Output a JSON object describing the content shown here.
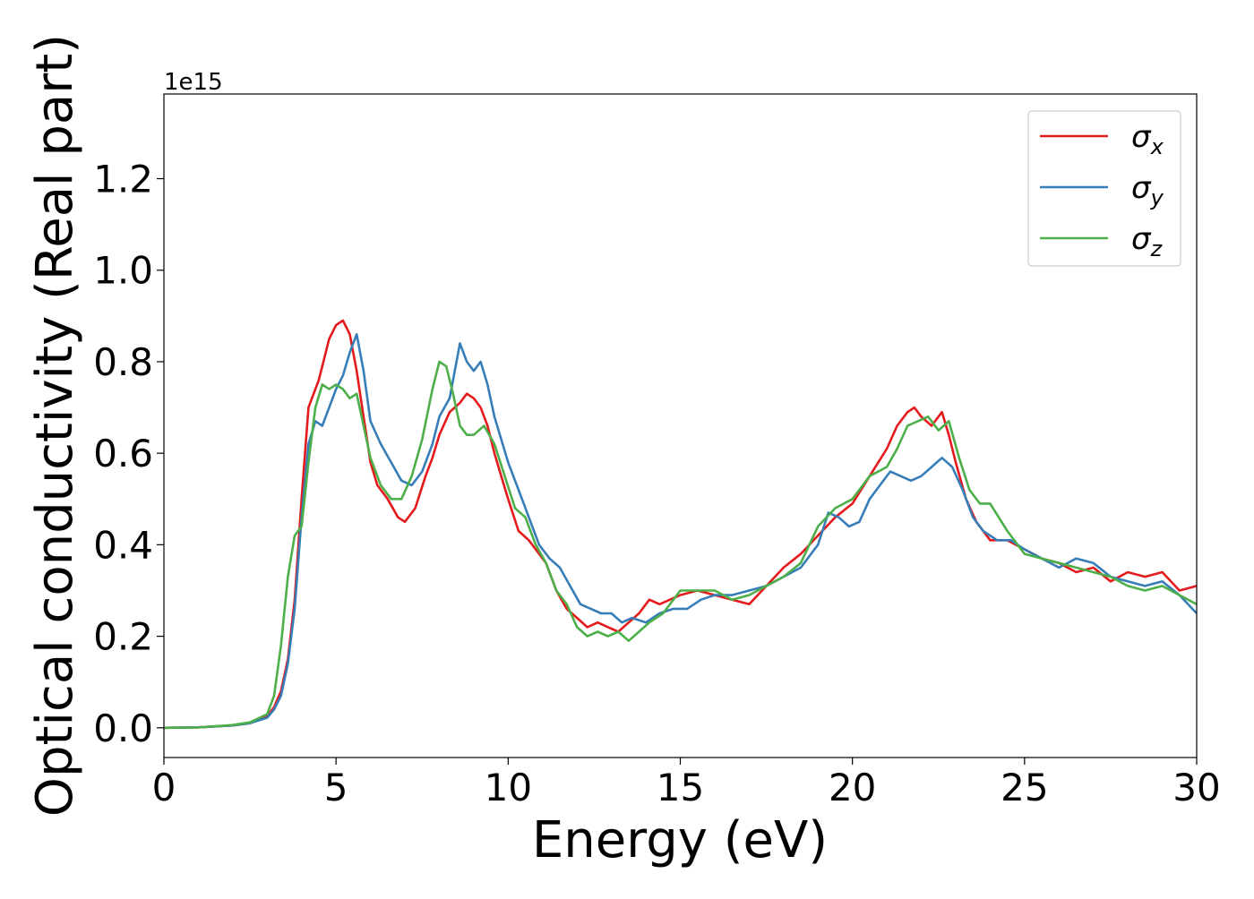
{
  "chart_data": {
    "type": "line",
    "title": "",
    "xlabel": "Energy (eV)",
    "ylabel": "Optical conductivity (Real part)",
    "y_offset_text": "1e15",
    "xlim": [
      0,
      30
    ],
    "ylim": [
      -0.065,
      1.385
    ],
    "x_ticks": [
      0,
      5,
      10,
      15,
      20,
      25,
      30
    ],
    "x_tick_labels": [
      "0",
      "5",
      "10",
      "15",
      "20",
      "25",
      "30"
    ],
    "y_ticks": [
      0.0,
      0.2,
      0.4,
      0.6,
      0.8,
      1.0,
      1.2
    ],
    "y_tick_labels": [
      "0.0",
      "0.2",
      "0.4",
      "0.6",
      "0.8",
      "1.0",
      "1.2"
    ],
    "grid": false,
    "legend_position": "top-right",
    "series": [
      {
        "name": "σx",
        "legend_base": "σ",
        "legend_sub": "x",
        "color": "#e41a1c",
        "x": [
          0,
          1,
          2,
          2.5,
          3,
          3.2,
          3.4,
          3.6,
          3.8,
          4.0,
          4.2,
          4.5,
          4.8,
          5.0,
          5.2,
          5.4,
          5.6,
          5.8,
          6.0,
          6.2,
          6.5,
          6.8,
          7.0,
          7.3,
          7.6,
          7.8,
          8.0,
          8.3,
          8.6,
          8.8,
          9.0,
          9.2,
          9.4,
          9.6,
          9.8,
          10.0,
          10.3,
          10.6,
          10.9,
          11.1,
          11.4,
          11.7,
          12.0,
          12.3,
          12.6,
          12.9,
          13.2,
          13.5,
          13.8,
          14.1,
          14.4,
          14.7,
          15.0,
          15.5,
          16.0,
          16.5,
          17.0,
          17.5,
          18.0,
          18.5,
          19.0,
          19.5,
          20.0,
          20.5,
          21.0,
          21.3,
          21.6,
          21.8,
          22.0,
          22.3,
          22.6,
          22.8,
          23.0,
          23.3,
          23.6,
          24.0,
          24.5,
          25.0,
          25.5,
          26.0,
          26.5,
          27.0,
          27.5,
          28.0,
          28.5,
          29.0,
          29.5,
          30.0
        ],
        "y": [
          0.0,
          0.001,
          0.005,
          0.01,
          0.025,
          0.045,
          0.08,
          0.15,
          0.28,
          0.5,
          0.7,
          0.76,
          0.85,
          0.88,
          0.89,
          0.86,
          0.78,
          0.68,
          0.58,
          0.53,
          0.5,
          0.46,
          0.45,
          0.48,
          0.55,
          0.59,
          0.64,
          0.69,
          0.71,
          0.73,
          0.72,
          0.7,
          0.66,
          0.6,
          0.55,
          0.5,
          0.43,
          0.41,
          0.38,
          0.36,
          0.3,
          0.26,
          0.24,
          0.22,
          0.23,
          0.22,
          0.21,
          0.23,
          0.25,
          0.28,
          0.27,
          0.28,
          0.29,
          0.3,
          0.29,
          0.28,
          0.27,
          0.31,
          0.35,
          0.38,
          0.42,
          0.46,
          0.49,
          0.55,
          0.61,
          0.66,
          0.69,
          0.7,
          0.68,
          0.66,
          0.69,
          0.64,
          0.58,
          0.5,
          0.45,
          0.41,
          0.41,
          0.39,
          0.37,
          0.36,
          0.34,
          0.35,
          0.32,
          0.34,
          0.33,
          0.34,
          0.3,
          0.31
        ]
      },
      {
        "name": "σy",
        "legend_base": "σ",
        "legend_sub": "y",
        "color": "#377eb8",
        "x": [
          0,
          1,
          2,
          2.5,
          3,
          3.2,
          3.4,
          3.6,
          3.8,
          4.0,
          4.2,
          4.4,
          4.6,
          4.8,
          5.0,
          5.2,
          5.4,
          5.6,
          5.8,
          6.0,
          6.3,
          6.6,
          6.9,
          7.2,
          7.5,
          7.8,
          8.0,
          8.3,
          8.6,
          8.8,
          9.0,
          9.2,
          9.4,
          9.6,
          9.8,
          10.0,
          10.3,
          10.6,
          10.9,
          11.2,
          11.5,
          11.8,
          12.1,
          12.4,
          12.7,
          13.0,
          13.3,
          13.6,
          14.0,
          14.4,
          14.8,
          15.2,
          15.6,
          16.0,
          16.5,
          17.0,
          17.5,
          18.0,
          18.5,
          19.0,
          19.3,
          19.6,
          19.9,
          20.2,
          20.5,
          20.8,
          21.1,
          21.4,
          21.7,
          22.0,
          22.3,
          22.6,
          22.9,
          23.2,
          23.5,
          23.8,
          24.2,
          24.6,
          25.0,
          25.5,
          26.0,
          26.5,
          27.0,
          27.5,
          28.0,
          28.5,
          29.0,
          29.5,
          30.0
        ],
        "y": [
          0.0,
          0.001,
          0.005,
          0.01,
          0.022,
          0.04,
          0.07,
          0.14,
          0.26,
          0.46,
          0.62,
          0.67,
          0.66,
          0.7,
          0.74,
          0.77,
          0.82,
          0.86,
          0.78,
          0.67,
          0.62,
          0.58,
          0.54,
          0.53,
          0.56,
          0.62,
          0.68,
          0.72,
          0.84,
          0.8,
          0.78,
          0.8,
          0.75,
          0.68,
          0.63,
          0.58,
          0.52,
          0.46,
          0.4,
          0.37,
          0.35,
          0.31,
          0.27,
          0.26,
          0.25,
          0.25,
          0.23,
          0.24,
          0.23,
          0.25,
          0.26,
          0.26,
          0.28,
          0.29,
          0.29,
          0.3,
          0.31,
          0.33,
          0.35,
          0.4,
          0.47,
          0.46,
          0.44,
          0.45,
          0.5,
          0.53,
          0.56,
          0.55,
          0.54,
          0.55,
          0.57,
          0.59,
          0.57,
          0.52,
          0.46,
          0.43,
          0.41,
          0.41,
          0.39,
          0.37,
          0.35,
          0.37,
          0.36,
          0.33,
          0.32,
          0.31,
          0.32,
          0.29,
          0.25
        ]
      },
      {
        "name": "σz",
        "legend_base": "σ",
        "legend_sub": "z",
        "color": "#4daf4a",
        "x": [
          0,
          1,
          2,
          2.5,
          3,
          3.2,
          3.4,
          3.6,
          3.8,
          4.0,
          4.2,
          4.4,
          4.6,
          4.8,
          5.0,
          5.2,
          5.4,
          5.6,
          5.8,
          6.0,
          6.3,
          6.6,
          6.9,
          7.2,
          7.5,
          7.8,
          8.0,
          8.2,
          8.4,
          8.6,
          8.8,
          9.0,
          9.3,
          9.6,
          9.9,
          10.2,
          10.5,
          10.8,
          11.1,
          11.4,
          11.7,
          12.0,
          12.3,
          12.6,
          12.9,
          13.2,
          13.5,
          13.8,
          14.1,
          14.5,
          15.0,
          15.5,
          16.0,
          16.5,
          17.0,
          17.5,
          18.0,
          18.5,
          19.0,
          19.5,
          20.0,
          20.5,
          21.0,
          21.3,
          21.6,
          21.9,
          22.2,
          22.5,
          22.8,
          23.1,
          23.4,
          23.7,
          24.0,
          24.5,
          25.0,
          25.5,
          26.0,
          26.5,
          27.0,
          27.5,
          28.0,
          28.5,
          29.0,
          29.5,
          30.0
        ],
        "y": [
          0.0,
          0.001,
          0.006,
          0.012,
          0.03,
          0.07,
          0.18,
          0.33,
          0.42,
          0.44,
          0.58,
          0.7,
          0.75,
          0.74,
          0.75,
          0.74,
          0.72,
          0.73,
          0.66,
          0.59,
          0.53,
          0.5,
          0.5,
          0.55,
          0.63,
          0.74,
          0.8,
          0.79,
          0.73,
          0.66,
          0.64,
          0.64,
          0.66,
          0.62,
          0.55,
          0.48,
          0.46,
          0.4,
          0.36,
          0.3,
          0.27,
          0.22,
          0.2,
          0.21,
          0.2,
          0.21,
          0.19,
          0.21,
          0.23,
          0.25,
          0.3,
          0.3,
          0.3,
          0.28,
          0.29,
          0.31,
          0.33,
          0.36,
          0.44,
          0.48,
          0.5,
          0.55,
          0.57,
          0.61,
          0.66,
          0.67,
          0.68,
          0.65,
          0.67,
          0.59,
          0.52,
          0.49,
          0.49,
          0.43,
          0.38,
          0.37,
          0.36,
          0.35,
          0.34,
          0.33,
          0.31,
          0.3,
          0.31,
          0.29,
          0.27
        ]
      }
    ]
  }
}
